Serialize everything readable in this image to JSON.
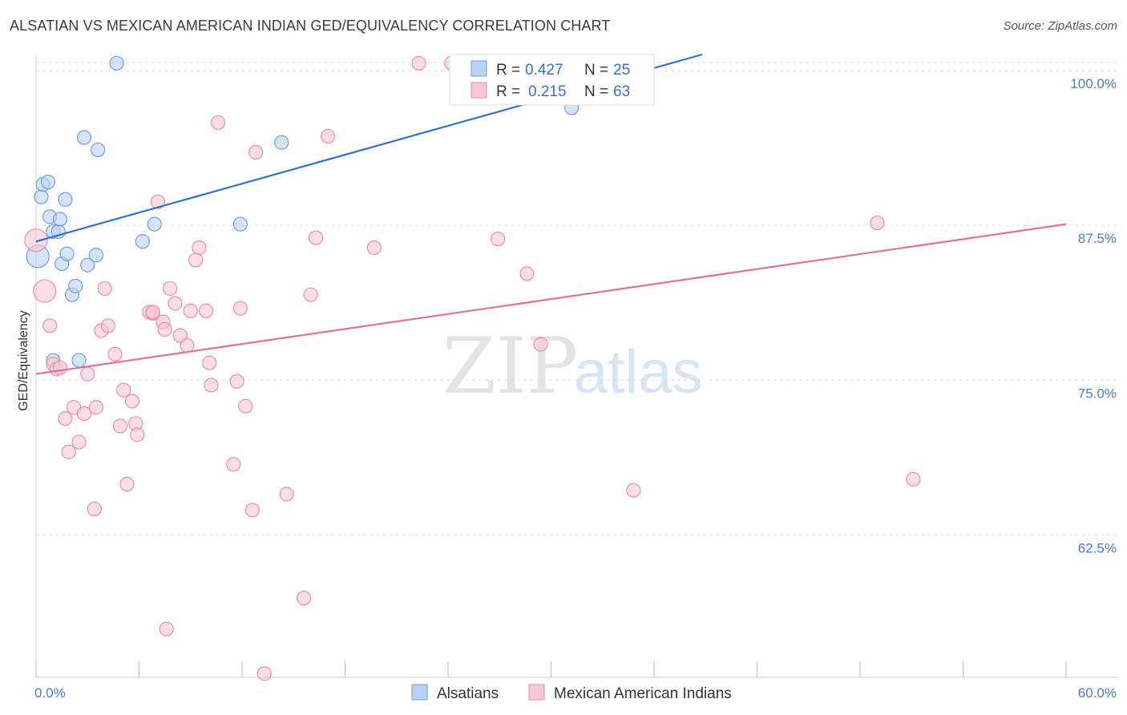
{
  "header": {
    "title": "ALSATIAN VS MEXICAN AMERICAN INDIAN GED/EQUIVALENCY CORRELATION CHART",
    "source": "Source: ZipAtlas.com"
  },
  "watermark": {
    "zip": "ZIP",
    "atlas": "atlas"
  },
  "colors": {
    "blue_fill": "#b9d2f3",
    "blue_stroke": "#6f9fdc",
    "blue_line": "#2f72c8",
    "pink_fill": "#f8c6d6",
    "pink_stroke": "#e98daa",
    "pink_line": "#e0709a",
    "grid": "#dddddd",
    "tick_label": "#4a7ac9"
  },
  "legend": {
    "rows": [
      {
        "r_label": "R =",
        "r_value": "0.427",
        "n_label": "N =",
        "n_value": "25"
      },
      {
        "r_label": "R =",
        "r_value": "0.215",
        "n_label": "N =",
        "n_value": "63"
      }
    ]
  },
  "chart_data": {
    "type": "scatter",
    "title": "ALSATIAN VS MEXICAN AMERICAN INDIAN GED/EQUIVALENCY CORRELATION CHART",
    "xlabel": "",
    "ylabel": "GED/Equivalency",
    "xlim": [
      0,
      60
    ],
    "ylim": [
      51,
      101.3
    ],
    "x_tick_labels": [
      "0.0%",
      "60.0%"
    ],
    "y_ticks": [
      62.5,
      75.0,
      87.5,
      100.0
    ],
    "y_tick_labels": [
      "62.5%",
      "75.0%",
      "87.5%",
      "100.0%"
    ],
    "grid": true,
    "legend_position": "top-center",
    "series": [
      {
        "name": "Alsatians",
        "trend": {
          "x": [
            0,
            38.8
          ],
          "y": [
            86.2,
            101.3
          ]
        },
        "points": [
          {
            "x": 0.1,
            "y": 85.0,
            "big": true
          },
          {
            "x": 0.3,
            "y": 89.8
          },
          {
            "x": 0.4,
            "y": 90.8
          },
          {
            "x": 0.7,
            "y": 91.0
          },
          {
            "x": 0.8,
            "y": 88.2
          },
          {
            "x": 1.0,
            "y": 87.0
          },
          {
            "x": 1.0,
            "y": 76.6
          },
          {
            "x": 1.3,
            "y": 87.0
          },
          {
            "x": 1.4,
            "y": 88.0
          },
          {
            "x": 1.5,
            "y": 84.4
          },
          {
            "x": 1.7,
            "y": 89.6
          },
          {
            "x": 1.8,
            "y": 85.2
          },
          {
            "x": 2.1,
            "y": 81.9
          },
          {
            "x": 2.3,
            "y": 82.6
          },
          {
            "x": 2.5,
            "y": 76.6
          },
          {
            "x": 2.8,
            "y": 94.6
          },
          {
            "x": 3.0,
            "y": 84.3
          },
          {
            "x": 3.5,
            "y": 85.1
          },
          {
            "x": 3.6,
            "y": 93.6
          },
          {
            "x": 4.7,
            "y": 100.6
          },
          {
            "x": 6.2,
            "y": 86.2
          },
          {
            "x": 6.9,
            "y": 87.6
          },
          {
            "x": 11.9,
            "y": 87.6
          },
          {
            "x": 14.3,
            "y": 94.2
          },
          {
            "x": 31.2,
            "y": 97.0
          }
        ]
      },
      {
        "name": "Mexican American Indians",
        "trend": {
          "x": [
            0,
            60
          ],
          "y": [
            75.5,
            87.6
          ]
        },
        "points": [
          {
            "x": 0.0,
            "y": 86.3,
            "big": true
          },
          {
            "x": 0.5,
            "y": 82.2,
            "big": true
          },
          {
            "x": 0.8,
            "y": 79.4
          },
          {
            "x": 1.0,
            "y": 76.3
          },
          {
            "x": 1.2,
            "y": 75.9
          },
          {
            "x": 1.4,
            "y": 76.0
          },
          {
            "x": 1.7,
            "y": 71.9
          },
          {
            "x": 1.9,
            "y": 69.2
          },
          {
            "x": 2.2,
            "y": 72.8
          },
          {
            "x": 2.5,
            "y": 70.0
          },
          {
            "x": 2.8,
            "y": 72.3
          },
          {
            "x": 3.0,
            "y": 75.5
          },
          {
            "x": 3.4,
            "y": 64.6
          },
          {
            "x": 3.5,
            "y": 72.8
          },
          {
            "x": 3.8,
            "y": 79.0
          },
          {
            "x": 4.0,
            "y": 82.4
          },
          {
            "x": 4.2,
            "y": 79.4
          },
          {
            "x": 4.6,
            "y": 77.1
          },
          {
            "x": 4.9,
            "y": 71.3
          },
          {
            "x": 5.1,
            "y": 74.2
          },
          {
            "x": 5.3,
            "y": 66.6
          },
          {
            "x": 5.6,
            "y": 73.3
          },
          {
            "x": 5.8,
            "y": 71.5
          },
          {
            "x": 5.9,
            "y": 70.6
          },
          {
            "x": 6.6,
            "y": 80.5
          },
          {
            "x": 6.8,
            "y": 80.4
          },
          {
            "x": 6.8,
            "y": 80.5
          },
          {
            "x": 7.1,
            "y": 89.4
          },
          {
            "x": 7.4,
            "y": 79.7
          },
          {
            "x": 7.5,
            "y": 79.1
          },
          {
            "x": 7.6,
            "y": 54.9
          },
          {
            "x": 7.8,
            "y": 82.4
          },
          {
            "x": 8.1,
            "y": 81.2
          },
          {
            "x": 8.4,
            "y": 78.6
          },
          {
            "x": 8.8,
            "y": 77.8
          },
          {
            "x": 9.0,
            "y": 80.6
          },
          {
            "x": 9.3,
            "y": 84.7
          },
          {
            "x": 9.5,
            "y": 85.7
          },
          {
            "x": 9.9,
            "y": 80.6
          },
          {
            "x": 10.1,
            "y": 76.4
          },
          {
            "x": 10.2,
            "y": 74.6
          },
          {
            "x": 10.6,
            "y": 95.8
          },
          {
            "x": 11.5,
            "y": 68.2
          },
          {
            "x": 11.7,
            "y": 74.9
          },
          {
            "x": 11.9,
            "y": 80.8
          },
          {
            "x": 12.2,
            "y": 72.9
          },
          {
            "x": 12.6,
            "y": 64.5
          },
          {
            "x": 12.8,
            "y": 93.4
          },
          {
            "x": 13.3,
            "y": 51.3
          },
          {
            "x": 14.6,
            "y": 65.8
          },
          {
            "x": 15.6,
            "y": 57.4
          },
          {
            "x": 16.0,
            "y": 81.9
          },
          {
            "x": 16.3,
            "y": 86.5
          },
          {
            "x": 17.0,
            "y": 94.7
          },
          {
            "x": 19.7,
            "y": 85.7
          },
          {
            "x": 22.3,
            "y": 100.6
          },
          {
            "x": 24.2,
            "y": 100.6
          },
          {
            "x": 26.9,
            "y": 86.4
          },
          {
            "x": 28.6,
            "y": 83.6
          },
          {
            "x": 29.4,
            "y": 77.9
          },
          {
            "x": 34.8,
            "y": 66.1
          },
          {
            "x": 49.0,
            "y": 87.7
          },
          {
            "x": 51.1,
            "y": 67.0
          }
        ]
      }
    ]
  }
}
